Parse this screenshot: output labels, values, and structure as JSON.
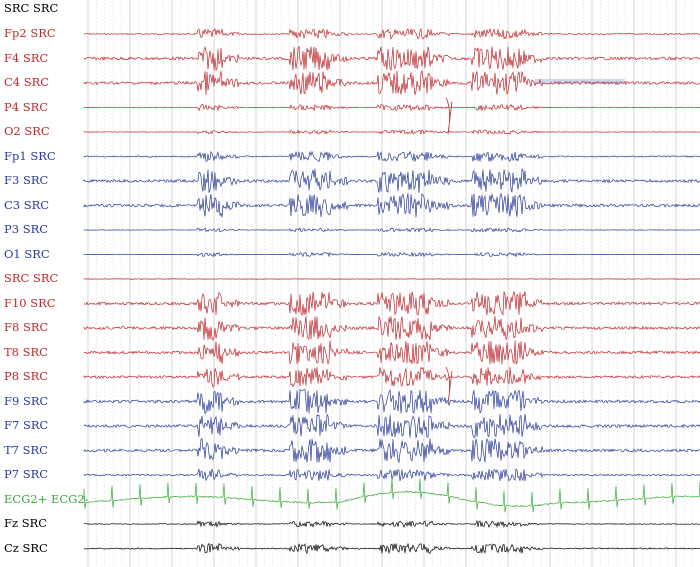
{
  "header_label": "SRC SRC",
  "colors": {
    "red": "#c0282d",
    "blue": "#2a3a9a",
    "green": "#3aa83a",
    "black": "#000000",
    "header": "#000000",
    "grid": "#9a9a9a",
    "highlight": "#b8c4e8"
  },
  "channels": [
    {
      "label": "Fp2 SRC",
      "color": "red",
      "type": "eeg",
      "amp": 5
    },
    {
      "label": "F4 SRC",
      "color": "red",
      "type": "eeg",
      "amp": 12
    },
    {
      "label": "C4 SRC",
      "color": "red",
      "type": "eeg",
      "amp": 12
    },
    {
      "label": "P4 SRC",
      "color": "red",
      "type": "eeg",
      "amp": 3
    },
    {
      "label": "O2 SRC",
      "color": "red",
      "type": "eeg",
      "amp": 2
    },
    {
      "label": "Fp1 SRC",
      "color": "blue",
      "type": "eeg",
      "amp": 5
    },
    {
      "label": "F3 SRC",
      "color": "blue",
      "type": "eeg",
      "amp": 12
    },
    {
      "label": "C3 SRC",
      "color": "blue",
      "type": "eeg",
      "amp": 12
    },
    {
      "label": "P3 SRC",
      "color": "blue",
      "type": "eeg",
      "amp": 2
    },
    {
      "label": "O1 SRC",
      "color": "blue",
      "type": "eeg",
      "amp": 2
    },
    {
      "label": "SRC SRC",
      "color": "red",
      "type": "flat",
      "amp": 0
    },
    {
      "label": "F10 SRC",
      "color": "red",
      "type": "eeg",
      "amp": 12
    },
    {
      "label": "F8 SRC",
      "color": "red",
      "type": "eeg",
      "amp": 12
    },
    {
      "label": "T8 SRC",
      "color": "red",
      "type": "eeg",
      "amp": 12
    },
    {
      "label": "P8 SRC",
      "color": "red",
      "type": "eeg",
      "amp": 10
    },
    {
      "label": "F9 SRC",
      "color": "blue",
      "type": "eeg",
      "amp": 12
    },
    {
      "label": "F7 SRC",
      "color": "blue",
      "type": "eeg",
      "amp": 12
    },
    {
      "label": "T7 SRC",
      "color": "blue",
      "type": "eeg",
      "amp": 12
    },
    {
      "label": "P7 SRC",
      "color": "blue",
      "type": "eeg",
      "amp": 6
    },
    {
      "label": "ECG2+ ECG2-",
      "color": "green",
      "type": "ecg",
      "amp": 14
    },
    {
      "label": "Fz SRC",
      "color": "black",
      "type": "eeg",
      "amp": 3
    },
    {
      "label": "Cz SRC",
      "color": "black",
      "type": "eeg",
      "amp": 5
    }
  ]
}
